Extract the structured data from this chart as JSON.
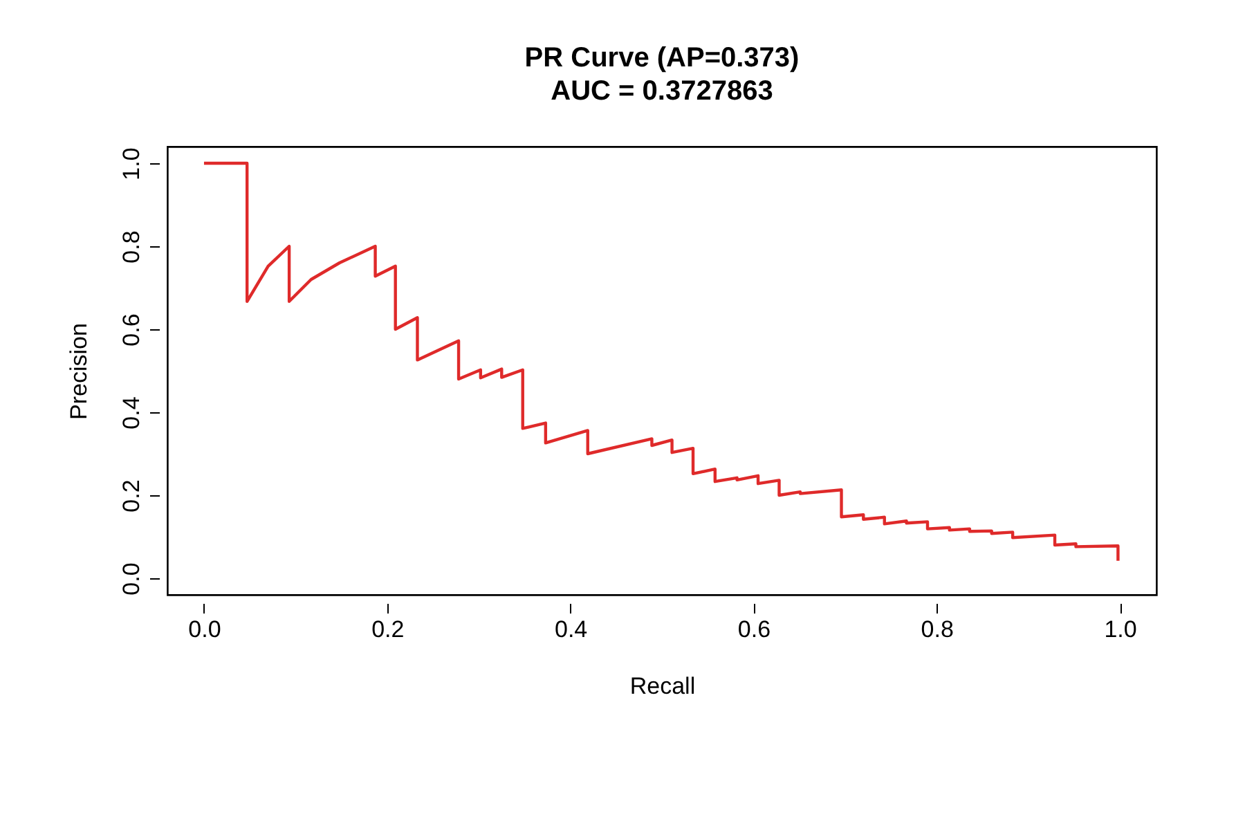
{
  "chart_data": {
    "type": "line",
    "title": "PR Curve (AP=0.373)",
    "subtitle": "AUC = 0.3727863",
    "xlabel": "Recall",
    "ylabel": "Precision",
    "xlim": [
      -0.04,
      1.04
    ],
    "ylim": [
      -0.04,
      1.04
    ],
    "xticks": [
      {
        "value": 0,
        "label": "0.0"
      },
      0.2,
      0.4,
      0.6,
      0.8,
      {
        "value": 1,
        "label": "1.0"
      }
    ],
    "yticks": [
      {
        "value": 0,
        "label": "0.0"
      },
      0.2,
      0.4,
      0.6,
      0.8,
      {
        "value": 1,
        "label": "1.0"
      }
    ],
    "grid": false,
    "marker": "none",
    "line_style": "solid",
    "series": [
      {
        "color": "#df2a2a",
        "x": [
          0,
          0.047,
          0.047,
          0.07,
          0.093,
          0.093,
          0.117,
          0.148,
          0.187,
          0.187,
          0.209,
          0.209,
          0.233,
          0.233,
          0.278,
          0.278,
          0.302,
          0.302,
          0.325,
          0.325,
          0.348,
          0.348,
          0.373,
          0.373,
          0.419,
          0.419,
          0.489,
          0.489,
          0.511,
          0.511,
          0.534,
          0.534,
          0.558,
          0.558,
          0.582,
          0.582,
          0.605,
          0.605,
          0.628,
          0.628,
          0.651,
          0.651,
          0.696,
          0.696,
          0.72,
          0.72,
          0.743,
          0.743,
          0.767,
          0.767,
          0.79,
          0.79,
          0.814,
          0.814,
          0.836,
          0.836,
          0.86,
          0.86,
          0.883,
          0.883,
          0.929,
          0.929,
          0.952,
          0.952,
          0.998,
          0.998
        ],
        "values": [
          1.0,
          1.0,
          0.667,
          0.752,
          0.8,
          0.667,
          0.72,
          0.76,
          0.8,
          0.728,
          0.752,
          0.6,
          0.628,
          0.526,
          0.572,
          0.48,
          0.502,
          0.483,
          0.504,
          0.484,
          0.502,
          0.361,
          0.374,
          0.326,
          0.356,
          0.3,
          0.336,
          0.32,
          0.333,
          0.303,
          0.313,
          0.252,
          0.263,
          0.233,
          0.242,
          0.237,
          0.247,
          0.228,
          0.236,
          0.2,
          0.208,
          0.204,
          0.213,
          0.148,
          0.153,
          0.142,
          0.147,
          0.131,
          0.138,
          0.133,
          0.136,
          0.119,
          0.122,
          0.116,
          0.119,
          0.113,
          0.114,
          0.108,
          0.111,
          0.098,
          0.104,
          0.08,
          0.083,
          0.076,
          0.078,
          0.042
        ]
      }
    ]
  }
}
